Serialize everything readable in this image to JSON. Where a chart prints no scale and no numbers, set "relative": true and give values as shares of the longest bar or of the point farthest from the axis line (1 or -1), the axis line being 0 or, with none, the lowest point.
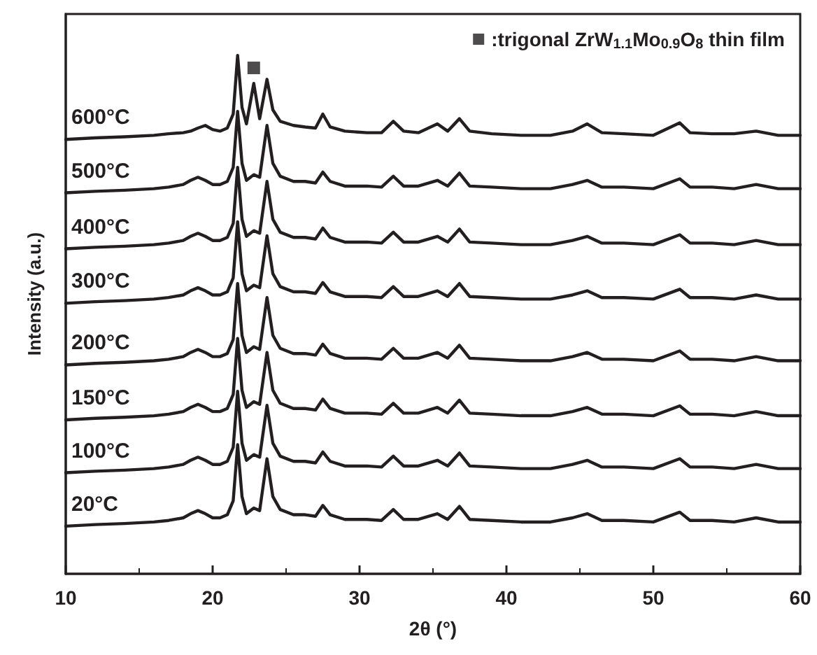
{
  "chart_data": {
    "type": "line",
    "relative": true,
    "xlabel": "2θ (°)",
    "ylabel": "Intensity (a.u.)",
    "xlim": [
      10,
      60
    ],
    "xticks": [
      10,
      20,
      30,
      40,
      50,
      60
    ],
    "grid": false,
    "legend": "top right",
    "marker": "none",
    "x": [
      10,
      12,
      14,
      16,
      17,
      18,
      18.5,
      19,
      19.5,
      20,
      20.5,
      21,
      21.4,
      21.7,
      22,
      22.3,
      22.8,
      23.2,
      23.7,
      24.1,
      24.6,
      25.5,
      26.3,
      27,
      27.5,
      28,
      29,
      30.5,
      31.5,
      32.3,
      33,
      34,
      35.3,
      36,
      36.8,
      37.5,
      39,
      41,
      43,
      44.5,
      45.5,
      46.5,
      48,
      50,
      51.8,
      52.5,
      54,
      55.5,
      57,
      58.5,
      60
    ],
    "series": [
      {
        "name": "600°C",
        "color": "#231f20",
        "values": [
          0.838,
          0.841,
          0.843,
          0.846,
          0.849,
          0.851,
          0.854,
          0.86,
          0.865,
          0.857,
          0.854,
          0.86,
          0.887,
          1.0,
          0.9,
          0.868,
          0.946,
          0.878,
          0.954,
          0.895,
          0.873,
          0.865,
          0.862,
          0.86,
          0.887,
          0.862,
          0.854,
          0.851,
          0.851,
          0.873,
          0.854,
          0.851,
          0.868,
          0.854,
          0.878,
          0.854,
          0.849,
          0.846,
          0.846,
          0.854,
          0.868,
          0.851,
          0.849,
          0.846,
          0.87,
          0.851,
          0.849,
          0.849,
          0.854,
          0.846,
          0.846
        ]
      },
      {
        "name": "500°C",
        "color": "#231f20",
        "values": [
          0.735,
          0.738,
          0.74,
          0.743,
          0.746,
          0.751,
          0.759,
          0.765,
          0.759,
          0.751,
          0.751,
          0.757,
          0.784,
          0.892,
          0.792,
          0.759,
          0.77,
          0.765,
          0.865,
          0.792,
          0.767,
          0.757,
          0.757,
          0.754,
          0.775,
          0.757,
          0.748,
          0.748,
          0.746,
          0.767,
          0.748,
          0.748,
          0.759,
          0.748,
          0.773,
          0.748,
          0.746,
          0.743,
          0.743,
          0.751,
          0.759,
          0.746,
          0.746,
          0.743,
          0.762,
          0.746,
          0.746,
          0.743,
          0.751,
          0.743,
          0.743
        ]
      },
      {
        "name": "400°C",
        "color": "#231f20",
        "values": [
          0.627,
          0.63,
          0.632,
          0.635,
          0.638,
          0.643,
          0.651,
          0.657,
          0.651,
          0.643,
          0.643,
          0.649,
          0.676,
          0.784,
          0.684,
          0.651,
          0.662,
          0.657,
          0.757,
          0.684,
          0.659,
          0.649,
          0.649,
          0.646,
          0.667,
          0.649,
          0.64,
          0.64,
          0.638,
          0.659,
          0.64,
          0.64,
          0.651,
          0.64,
          0.665,
          0.64,
          0.638,
          0.635,
          0.635,
          0.643,
          0.651,
          0.638,
          0.638,
          0.635,
          0.654,
          0.638,
          0.638,
          0.635,
          0.643,
          0.635,
          0.635
        ]
      },
      {
        "name": "300°C",
        "color": "#231f20",
        "values": [
          0.522,
          0.525,
          0.527,
          0.53,
          0.533,
          0.538,
          0.546,
          0.552,
          0.546,
          0.538,
          0.538,
          0.544,
          0.571,
          0.679,
          0.579,
          0.546,
          0.557,
          0.552,
          0.652,
          0.579,
          0.554,
          0.544,
          0.544,
          0.541,
          0.562,
          0.544,
          0.535,
          0.535,
          0.533,
          0.554,
          0.535,
          0.535,
          0.546,
          0.535,
          0.56,
          0.535,
          0.533,
          0.53,
          0.53,
          0.538,
          0.546,
          0.533,
          0.533,
          0.53,
          0.549,
          0.533,
          0.533,
          0.53,
          0.538,
          0.53,
          0.53
        ]
      },
      {
        "name": "200°C",
        "color": "#231f20",
        "values": [
          0.403,
          0.406,
          0.408,
          0.411,
          0.414,
          0.419,
          0.427,
          0.433,
          0.427,
          0.419,
          0.419,
          0.425,
          0.452,
          0.56,
          0.46,
          0.427,
          0.438,
          0.433,
          0.533,
          0.46,
          0.435,
          0.425,
          0.425,
          0.422,
          0.443,
          0.425,
          0.416,
          0.416,
          0.414,
          0.435,
          0.416,
          0.416,
          0.427,
          0.416,
          0.441,
          0.416,
          0.414,
          0.411,
          0.411,
          0.419,
          0.427,
          0.414,
          0.414,
          0.411,
          0.43,
          0.414,
          0.414,
          0.411,
          0.419,
          0.411,
          0.411
        ]
      },
      {
        "name": "150°C",
        "color": "#231f20",
        "values": [
          0.297,
          0.3,
          0.302,
          0.305,
          0.308,
          0.313,
          0.321,
          0.327,
          0.321,
          0.313,
          0.313,
          0.319,
          0.346,
          0.454,
          0.354,
          0.321,
          0.332,
          0.327,
          0.427,
          0.354,
          0.329,
          0.319,
          0.319,
          0.316,
          0.337,
          0.319,
          0.31,
          0.31,
          0.308,
          0.329,
          0.31,
          0.31,
          0.321,
          0.31,
          0.335,
          0.31,
          0.308,
          0.305,
          0.305,
          0.313,
          0.321,
          0.308,
          0.308,
          0.305,
          0.324,
          0.308,
          0.308,
          0.305,
          0.313,
          0.305,
          0.305
        ]
      },
      {
        "name": "100°C",
        "color": "#231f20",
        "values": [
          0.195,
          0.198,
          0.2,
          0.203,
          0.206,
          0.211,
          0.219,
          0.225,
          0.219,
          0.211,
          0.211,
          0.217,
          0.244,
          0.352,
          0.252,
          0.219,
          0.23,
          0.225,
          0.325,
          0.252,
          0.227,
          0.217,
          0.217,
          0.214,
          0.235,
          0.217,
          0.208,
          0.208,
          0.206,
          0.227,
          0.208,
          0.208,
          0.219,
          0.208,
          0.233,
          0.208,
          0.206,
          0.203,
          0.203,
          0.211,
          0.219,
          0.206,
          0.206,
          0.203,
          0.222,
          0.206,
          0.206,
          0.203,
          0.211,
          0.203,
          0.203
        ]
      },
      {
        "name": "20°C",
        "color": "#231f20",
        "values": [
          0.092,
          0.095,
          0.097,
          0.1,
          0.103,
          0.108,
          0.116,
          0.122,
          0.116,
          0.108,
          0.108,
          0.114,
          0.141,
          0.249,
          0.149,
          0.116,
          0.127,
          0.122,
          0.222,
          0.149,
          0.124,
          0.114,
          0.114,
          0.111,
          0.132,
          0.114,
          0.105,
          0.105,
          0.103,
          0.124,
          0.105,
          0.105,
          0.116,
          0.105,
          0.13,
          0.105,
          0.103,
          0.1,
          0.1,
          0.108,
          0.116,
          0.103,
          0.103,
          0.1,
          0.119,
          0.103,
          0.103,
          0.1,
          0.108,
          0.1,
          0.1
        ]
      },
      {
        "name": ":trigonal ZrW$_{1.1}$Mo$_{0.9}$O$_{8}$ thin film",
        "type": "scatter",
        "marker": "square",
        "color": "#231f20",
        "x": [
          22.8
        ],
        "values": [
          0.976
        ]
      }
    ]
  }
}
